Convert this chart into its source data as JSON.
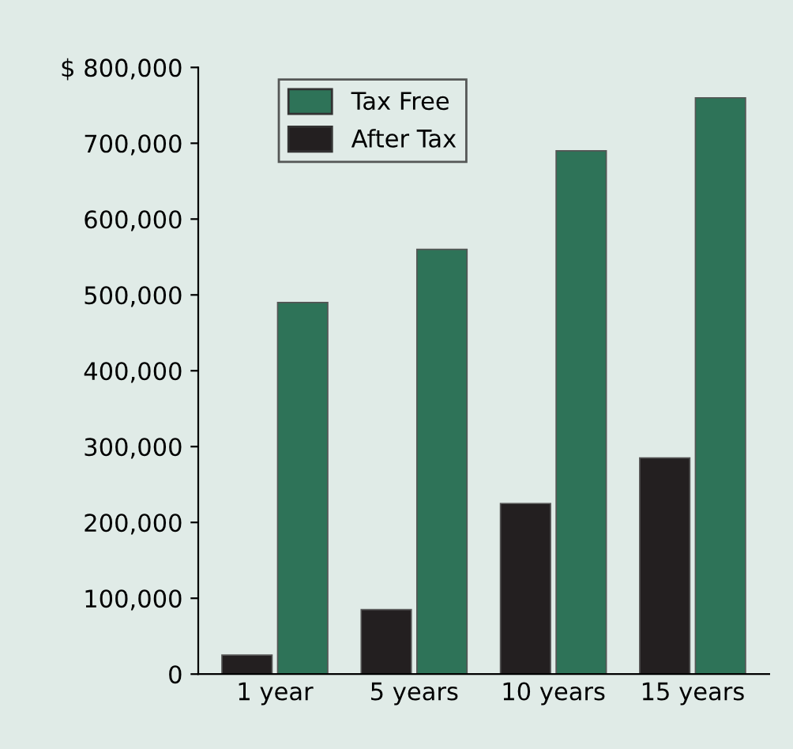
{
  "chart_data": {
    "type": "bar",
    "categories": [
      "1 year",
      "5 years",
      "10 years",
      "15 years"
    ],
    "series": [
      {
        "name": "After Tax",
        "color": "#231f20",
        "values": [
          25000,
          85000,
          225000,
          285000
        ]
      },
      {
        "name": "Tax Free",
        "color": "#2e7358",
        "values": [
          490000,
          560000,
          690000,
          760000
        ]
      }
    ],
    "ylim": [
      0,
      800000
    ],
    "yticks": [
      0,
      {
        "value": 100000,
        "label": "100,000"
      },
      {
        "value": 200000,
        "label": "200,000"
      },
      {
        "value": 300000,
        "label": "300,000"
      },
      {
        "value": 400000,
        "label": "400,000"
      },
      {
        "value": 500000,
        "label": "500,000"
      },
      {
        "value": 600000,
        "label": "600,000"
      },
      {
        "value": 700000,
        "label": "700,000"
      },
      {
        "value": 800000,
        "label": "$ 800,000"
      }
    ],
    "grid": false,
    "legend": "top left"
  }
}
